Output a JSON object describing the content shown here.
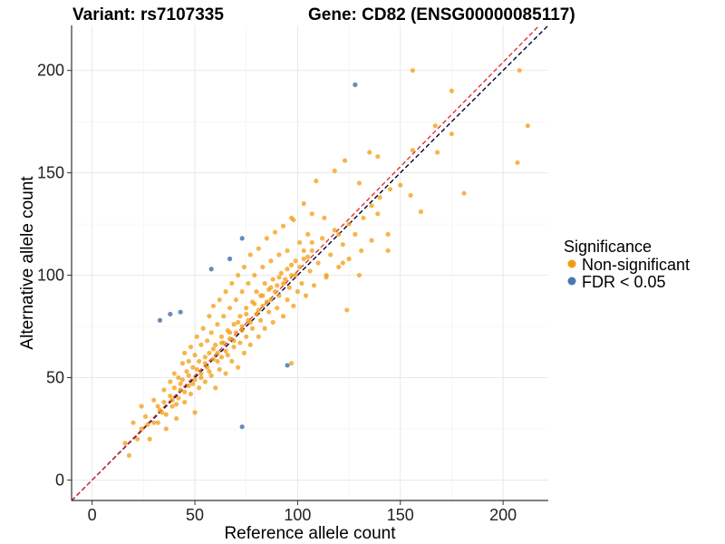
{
  "title_left": "Variant: rs7107335",
  "title_right": "Gene: CD82 (ENSG00000085117)",
  "chart_data": {
    "type": "scatter",
    "xlabel": "Reference allele count",
    "ylabel": "Alternative allele count",
    "xlim": [
      -10,
      222
    ],
    "ylim": [
      -10,
      222
    ],
    "x_ticks": [
      0,
      50,
      100,
      150,
      200
    ],
    "y_ticks": [
      0,
      50,
      100,
      150,
      200
    ],
    "grid": true,
    "reference_lines": [
      {
        "name": "identity",
        "color": "#000033",
        "style": "dashed",
        "slope": 1,
        "intercept": 0
      },
      {
        "name": "fit",
        "color": "#e3342f",
        "style": "dashed",
        "slope": 1.02,
        "intercept": 0
      }
    ],
    "legend": {
      "title": "Significance",
      "placement": "right",
      "entries": [
        {
          "label": "Non-significant",
          "color": "#f39c12"
        },
        {
          "label": "FDR < 0.05",
          "color": "#4a78b0"
        }
      ]
    },
    "series": [
      {
        "name": "Non-significant",
        "color": "#f39c12",
        "points": [
          [
            156,
            200
          ],
          [
            208,
            200
          ],
          [
            175,
            190
          ],
          [
            212,
            173
          ],
          [
            167,
            173
          ],
          [
            175,
            169
          ],
          [
            168,
            160
          ],
          [
            156,
            161
          ],
          [
            207,
            155
          ],
          [
            135,
            160
          ],
          [
            139,
            158
          ],
          [
            123,
            156
          ],
          [
            118,
            151
          ],
          [
            150,
            144
          ],
          [
            130,
            145
          ],
          [
            109,
            146
          ],
          [
            181,
            140
          ],
          [
            155,
            139
          ],
          [
            160,
            131
          ],
          [
            139,
            130
          ],
          [
            103,
            135
          ],
          [
            97,
            128
          ],
          [
            107,
            130
          ],
          [
            113,
            128
          ],
          [
            125,
            125
          ],
          [
            120,
            120
          ],
          [
            144,
            120
          ],
          [
            136,
            117
          ],
          [
            144,
            112
          ],
          [
            131,
            112
          ],
          [
            130,
            100
          ],
          [
            122,
            106
          ],
          [
            114,
            100
          ],
          [
            124,
            83
          ],
          [
            97,
            57
          ],
          [
            16,
            18
          ],
          [
            18,
            12
          ],
          [
            20,
            28
          ],
          [
            22,
            20
          ],
          [
            24,
            25
          ],
          [
            24,
            36
          ],
          [
            26,
            31
          ],
          [
            27,
            27
          ],
          [
            28,
            20
          ],
          [
            30,
            39
          ],
          [
            32,
            36
          ],
          [
            32,
            28
          ],
          [
            34,
            33
          ],
          [
            35,
            38
          ],
          [
            35,
            44
          ],
          [
            36,
            25
          ],
          [
            38,
            41
          ],
          [
            38,
            48
          ],
          [
            39,
            36
          ],
          [
            40,
            45
          ],
          [
            40,
            52
          ],
          [
            41,
            30
          ],
          [
            42,
            50
          ],
          [
            42,
            40
          ],
          [
            43,
            44
          ],
          [
            44,
            57
          ],
          [
            44,
            49
          ],
          [
            45,
            38
          ],
          [
            45,
            62
          ],
          [
            46,
            53
          ],
          [
            47,
            46
          ],
          [
            47,
            58
          ],
          [
            48,
            42
          ],
          [
            48,
            65
          ],
          [
            49,
            55
          ],
          [
            50,
            49
          ],
          [
            50,
            61
          ],
          [
            50,
            33
          ],
          [
            51,
            70
          ],
          [
            52,
            58
          ],
          [
            52,
            45
          ],
          [
            53,
            66
          ],
          [
            53,
            52
          ],
          [
            54,
            74
          ],
          [
            55,
            60
          ],
          [
            55,
            48
          ],
          [
            56,
            68
          ],
          [
            56,
            55
          ],
          [
            57,
            80
          ],
          [
            57,
            62
          ],
          [
            58,
            51
          ],
          [
            58,
            72
          ],
          [
            59,
            59
          ],
          [
            59,
            85
          ],
          [
            60,
            66
          ],
          [
            60,
            45
          ],
          [
            61,
            76
          ],
          [
            61,
            62
          ],
          [
            62,
            54
          ],
          [
            62,
            88
          ],
          [
            63,
            70
          ],
          [
            63,
            60
          ],
          [
            64,
            80
          ],
          [
            64,
            67
          ],
          [
            65,
            52
          ],
          [
            65,
            92
          ],
          [
            66,
            73
          ],
          [
            66,
            61
          ],
          [
            67,
            84
          ],
          [
            67,
            69
          ],
          [
            68,
            58
          ],
          [
            68,
            96
          ],
          [
            69,
            76
          ],
          [
            69,
            65
          ],
          [
            70,
            88
          ],
          [
            70,
            72
          ],
          [
            71,
            55
          ],
          [
            71,
            100
          ],
          [
            72,
            80
          ],
          [
            72,
            67
          ],
          [
            73,
            92
          ],
          [
            73,
            75
          ],
          [
            74,
            62
          ],
          [
            74,
            104
          ],
          [
            75,
            84
          ],
          [
            75,
            70
          ],
          [
            76,
            96
          ],
          [
            76,
            78
          ],
          [
            77,
            66
          ],
          [
            77,
            110
          ],
          [
            78,
            87
          ],
          [
            78,
            74
          ],
          [
            79,
            100
          ],
          [
            80,
            81
          ],
          [
            80,
            92
          ],
          [
            81,
            70
          ],
          [
            81,
            113
          ],
          [
            82,
            90
          ],
          [
            82,
            78
          ],
          [
            83,
            104
          ],
          [
            83,
            85
          ],
          [
            84,
            96
          ],
          [
            84,
            74
          ],
          [
            85,
            118
          ],
          [
            86,
            93
          ],
          [
            86,
            82
          ],
          [
            87,
            107
          ],
          [
            87,
            88
          ],
          [
            88,
            98
          ],
          [
            88,
            77
          ],
          [
            89,
            121
          ],
          [
            90,
            95
          ],
          [
            90,
            84
          ],
          [
            91,
            110
          ],
          [
            91,
            90
          ],
          [
            92,
            101
          ],
          [
            93,
            80
          ],
          [
            93,
            124
          ],
          [
            94,
            98
          ],
          [
            95,
            88
          ],
          [
            95,
            112
          ],
          [
            96,
            94
          ],
          [
            97,
            105
          ],
          [
            98,
            85
          ],
          [
            98,
            127
          ],
          [
            99,
            100
          ],
          [
            100,
            92
          ],
          [
            101,
            116
          ],
          [
            102,
            96
          ],
          [
            103,
            108
          ],
          [
            104,
            90
          ],
          [
            105,
            120
          ],
          [
            106,
            102
          ],
          [
            107,
            112
          ],
          [
            108,
            95
          ],
          [
            110,
            106
          ],
          [
            112,
            118
          ],
          [
            114,
            99
          ],
          [
            116,
            110
          ],
          [
            118,
            122
          ],
          [
            120,
            104
          ],
          [
            122,
            115
          ],
          [
            125,
            108
          ],
          [
            128,
            120
          ],
          [
            132,
            128
          ],
          [
            136,
            134
          ],
          [
            140,
            138
          ],
          [
            145,
            142
          ],
          [
            30,
            28
          ],
          [
            33,
            34
          ],
          [
            36,
            32
          ],
          [
            39,
            39
          ],
          [
            41,
            37
          ],
          [
            43,
            47
          ],
          [
            45,
            43
          ],
          [
            47,
            51
          ],
          [
            49,
            47
          ],
          [
            51,
            54
          ],
          [
            53,
            50
          ],
          [
            55,
            57
          ],
          [
            57,
            53
          ],
          [
            59,
            64
          ],
          [
            61,
            58
          ],
          [
            63,
            67
          ],
          [
            65,
            63
          ],
          [
            67,
            72
          ],
          [
            69,
            68
          ],
          [
            71,
            77
          ],
          [
            73,
            73
          ],
          [
            75,
            81
          ],
          [
            77,
            77
          ],
          [
            79,
            86
          ],
          [
            81,
            83
          ],
          [
            83,
            90
          ],
          [
            85,
            87
          ],
          [
            87,
            94
          ],
          [
            89,
            92
          ],
          [
            91,
            99
          ],
          [
            93,
            96
          ],
          [
            95,
            103
          ],
          [
            97,
            100
          ],
          [
            99,
            107
          ],
          [
            101,
            104
          ],
          [
            103,
            112
          ],
          [
            105,
            109
          ],
          [
            107,
            116
          ]
        ]
      },
      {
        "name": "FDR < 0.05",
        "color": "#4a78b0",
        "points": [
          [
            128,
            193
          ],
          [
            73,
            118
          ],
          [
            67,
            108
          ],
          [
            58,
            103
          ],
          [
            43,
            82
          ],
          [
            38,
            81
          ],
          [
            33,
            78
          ],
          [
            95,
            56
          ],
          [
            73,
            26
          ]
        ]
      }
    ]
  }
}
